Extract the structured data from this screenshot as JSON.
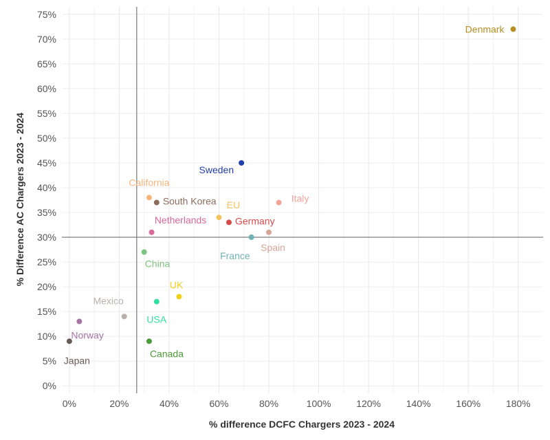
{
  "chart_data": {
    "type": "scatter",
    "title": "",
    "xlabel": "% difference DCFC Chargers 2023 - 2024",
    "ylabel": "% Difference AC Chargers 2023 - 2024",
    "xlim": [
      -3,
      190
    ],
    "ylim": [
      -1.5,
      76.5
    ],
    "x_ticks": [
      0,
      20,
      40,
      60,
      80,
      100,
      120,
      140,
      160,
      180
    ],
    "x_tick_labels": [
      "0%",
      "20%",
      "40%",
      "60%",
      "80%",
      "100%",
      "120%",
      "140%",
      "160%",
      "180%"
    ],
    "y_ticks": [
      0,
      5,
      10,
      15,
      20,
      25,
      30,
      35,
      40,
      45,
      50,
      55,
      60,
      65,
      70,
      75
    ],
    "y_tick_labels": [
      "0%",
      "5%",
      "10%",
      "15%",
      "20%",
      "25%",
      "30%",
      "35%",
      "40%",
      "45%",
      "50%",
      "55%",
      "60%",
      "65%",
      "70%",
      "75%"
    ],
    "reference_lines": {
      "x": 27,
      "y": 30
    },
    "grid": true,
    "points": [
      {
        "name": "Denmark",
        "x": 178,
        "y": 72,
        "color": "#b58d22",
        "label_pos": "left"
      },
      {
        "name": "Sweden",
        "x": 69,
        "y": 45,
        "color": "#1f3fae",
        "label_pos": "below-left"
      },
      {
        "name": "California",
        "x": 32,
        "y": 38,
        "color": "#f7b57e",
        "label_pos": "above"
      },
      {
        "name": "South Korea",
        "x": 35,
        "y": 37,
        "color": "#8c6d5c",
        "label_pos": "right"
      },
      {
        "name": "EU",
        "x": 60,
        "y": 34,
        "color": "#f3c35f",
        "label_pos": "above-right"
      },
      {
        "name": "Italy",
        "x": 84,
        "y": 37,
        "color": "#f3a39a",
        "label_pos": "above-right"
      },
      {
        "name": "Netherlands",
        "x": 33,
        "y": 31,
        "color": "#d96a97",
        "label_pos": "above-right"
      },
      {
        "name": "Germany",
        "x": 64,
        "y": 33,
        "color": "#d94a4a",
        "label_pos": "right"
      },
      {
        "name": "France",
        "x": 73,
        "y": 30,
        "color": "#6fb3b4",
        "label_pos": "below-left"
      },
      {
        "name": "Spain",
        "x": 80,
        "y": 31,
        "color": "#d8a59a",
        "label_pos": "below"
      },
      {
        "name": "China",
        "x": 30,
        "y": 27,
        "color": "#7ec47e",
        "label_pos": "below-right"
      },
      {
        "name": "UK",
        "x": 44,
        "y": 18,
        "color": "#f2d11b",
        "label_pos": "above"
      },
      {
        "name": "USA",
        "x": 35,
        "y": 17,
        "color": "#33e0a0",
        "label_pos": "below"
      },
      {
        "name": "Mexico",
        "x": 22,
        "y": 14,
        "color": "#bab0aa",
        "label_pos": "above-left"
      },
      {
        "name": "Norway",
        "x": 4,
        "y": 13,
        "color": "#a774a8",
        "label_pos": "below-right"
      },
      {
        "name": "Canada",
        "x": 32,
        "y": 9,
        "color": "#4e9a3a",
        "label_pos": "below-right"
      },
      {
        "name": "Japan",
        "x": 0,
        "y": 9,
        "color": "#6b5a5a",
        "label_pos": "below"
      }
    ]
  }
}
